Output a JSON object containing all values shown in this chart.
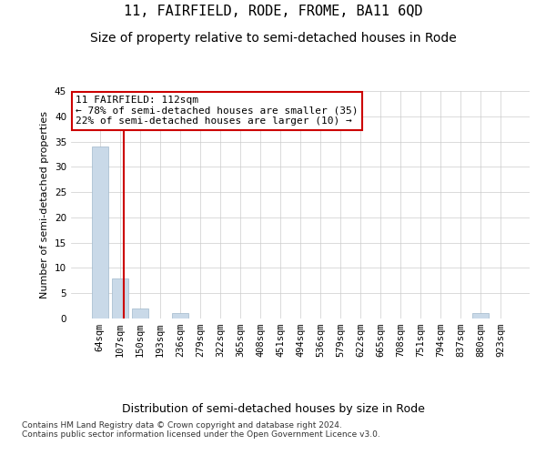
{
  "title": "11, FAIRFIELD, RODE, FROME, BA11 6QD",
  "subtitle": "Size of property relative to semi-detached houses in Rode",
  "xlabel": "Distribution of semi-detached houses by size in Rode",
  "ylabel": "Number of semi-detached properties",
  "categories": [
    "64sqm",
    "107sqm",
    "150sqm",
    "193sqm",
    "236sqm",
    "279sqm",
    "322sqm",
    "365sqm",
    "408sqm",
    "451sqm",
    "494sqm",
    "536sqm",
    "579sqm",
    "622sqm",
    "665sqm",
    "708sqm",
    "751sqm",
    "794sqm",
    "837sqm",
    "880sqm",
    "923sqm"
  ],
  "values": [
    34,
    8,
    2,
    0,
    1,
    0,
    0,
    0,
    0,
    0,
    0,
    0,
    0,
    0,
    0,
    0,
    0,
    0,
    0,
    1,
    0
  ],
  "bar_color": "#c9d9e8",
  "bar_edge_color": "#a0b8cc",
  "vline_x": 1.18,
  "vline_color": "#cc0000",
  "annotation_text": "11 FAIRFIELD: 112sqm\n← 78% of semi-detached houses are smaller (35)\n22% of semi-detached houses are larger (10) →",
  "annotation_box_color": "white",
  "annotation_box_edge": "#cc0000",
  "ylim": [
    0,
    45
  ],
  "yticks": [
    0,
    5,
    10,
    15,
    20,
    25,
    30,
    35,
    40,
    45
  ],
  "footer": "Contains HM Land Registry data © Crown copyright and database right 2024.\nContains public sector information licensed under the Open Government Licence v3.0.",
  "title_fontsize": 11,
  "subtitle_fontsize": 10,
  "xlabel_fontsize": 9,
  "ylabel_fontsize": 8,
  "tick_fontsize": 7.5,
  "footer_fontsize": 6.5,
  "annotation_fontsize": 8,
  "background_color": "#ffffff"
}
